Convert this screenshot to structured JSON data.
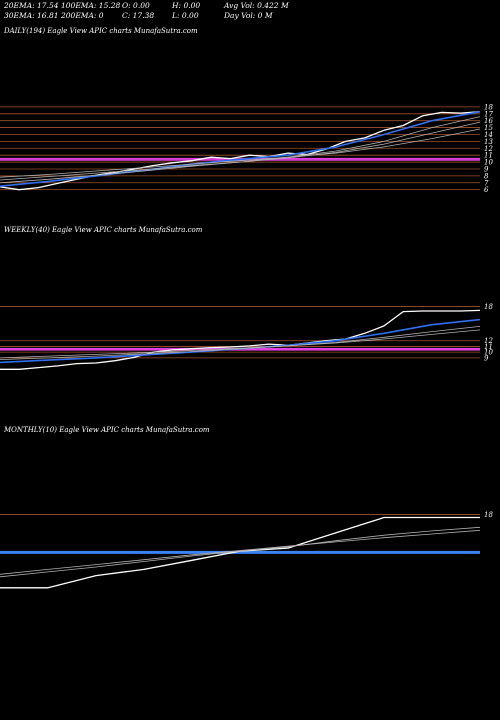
{
  "stats": {
    "row1": [
      "20EMA: 17.54",
      "100EMA: 15.28",
      "O: 0.00",
      "H: 0.00",
      "Avg Vol: 0.422  M"
    ],
    "row2": [
      "30EMA: 16.81",
      "200EMA: 0",
      "C: 17.38",
      "L: 0.00",
      "Day Vol: 0  M"
    ]
  },
  "colors": {
    "background": "#000000",
    "price": "#ffffff",
    "ema_fast": "#2d6ff0",
    "ema_slow": "#b0b0b0",
    "level_line": "#a0522d",
    "support_band": "#e040e0",
    "monthly_band": "#3b82f6"
  },
  "chart_data": [
    {
      "type": "line",
      "title": "DAILY(194) Eagle   View  APIC charts MunafaSutra.com",
      "ylim": [
        4.5,
        19
      ],
      "yticks": [
        18,
        17,
        16,
        15,
        14,
        13,
        12,
        11,
        10,
        9,
        8,
        7,
        6
      ],
      "levels": [
        18,
        17,
        16,
        15,
        14,
        13,
        12,
        11,
        10,
        9,
        8,
        7,
        6
      ],
      "bands": [
        10.3,
        10.5
      ],
      "series": [
        {
          "role": "price",
          "x": [
            0,
            4,
            8,
            12,
            16,
            20,
            24,
            28,
            32,
            36,
            40,
            44,
            48,
            52,
            56,
            60,
            64,
            68,
            72,
            76,
            80,
            84,
            88,
            92,
            96,
            100
          ],
          "values": [
            6.4,
            6.0,
            6.3,
            6.9,
            7.5,
            8.1,
            8.5,
            9.0,
            9.5,
            9.9,
            10.2,
            10.7,
            10.5,
            11.0,
            10.8,
            11.3,
            11.1,
            11.9,
            13.0,
            13.5,
            14.6,
            15.3,
            16.7,
            17.2,
            17.1,
            17.3
          ]
        },
        {
          "role": "ema_fast",
          "x": [
            0,
            10,
            20,
            30,
            40,
            50,
            60,
            70,
            80,
            90,
            100
          ],
          "values": [
            6.5,
            7.2,
            8.0,
            8.8,
            9.7,
            10.4,
            11.0,
            12.2,
            14.0,
            16.0,
            17.3
          ]
        },
        {
          "role": "ema_slow",
          "x": [
            0,
            10,
            20,
            30,
            40,
            50,
            60,
            70,
            80,
            90,
            100
          ],
          "values": [
            7.0,
            7.5,
            8.1,
            8.7,
            9.4,
            10.0,
            10.7,
            11.6,
            13.0,
            15.0,
            16.6
          ]
        },
        {
          "role": "ema_slow",
          "x": [
            0,
            10,
            20,
            30,
            40,
            50,
            60,
            70,
            80,
            90,
            100
          ],
          "values": [
            7.4,
            7.9,
            8.4,
            8.9,
            9.5,
            10.0,
            10.6,
            11.4,
            12.6,
            14.2,
            15.8
          ]
        },
        {
          "role": "ema_slow",
          "x": [
            0,
            10,
            20,
            30,
            40,
            50,
            60,
            70,
            80,
            90,
            100
          ],
          "values": [
            7.8,
            8.2,
            8.7,
            9.2,
            9.7,
            10.2,
            10.7,
            11.3,
            12.2,
            13.4,
            14.8
          ]
        }
      ]
    },
    {
      "type": "line",
      "title": "WEEKLY(40) Eagle   View  APIC charts MunafaSutra.com",
      "ylim": [
        6,
        20
      ],
      "yticks": [
        18,
        12,
        11,
        10,
        9
      ],
      "levels": [
        18,
        12,
        11,
        10,
        9
      ],
      "bands": [
        10.4,
        10.6
      ],
      "series": [
        {
          "role": "price",
          "x": [
            0,
            4,
            8,
            12,
            16,
            20,
            24,
            28,
            32,
            36,
            40,
            44,
            48,
            52,
            56,
            60,
            64,
            68,
            72,
            76,
            80,
            84,
            88,
            92,
            96,
            100
          ],
          "values": [
            7.0,
            7.0,
            7.3,
            7.6,
            8.0,
            8.1,
            8.5,
            9.1,
            10.0,
            10.4,
            10.6,
            10.8,
            10.9,
            11.1,
            11.4,
            11.2,
            11.6,
            12.0,
            12.3,
            13.3,
            14.6,
            17.1,
            17.2,
            17.2,
            17.2,
            17.3
          ]
        },
        {
          "role": "ema_fast",
          "x": [
            0,
            10,
            20,
            30,
            40,
            50,
            60,
            70,
            80,
            90,
            100
          ],
          "values": [
            8.2,
            8.6,
            9.0,
            9.5,
            10.0,
            10.6,
            11.2,
            12.0,
            13.3,
            14.8,
            15.7
          ]
        },
        {
          "role": "ema_slow",
          "x": [
            0,
            10,
            20,
            30,
            40,
            50,
            60,
            70,
            80,
            90,
            100
          ],
          "values": [
            8.7,
            9.0,
            9.3,
            9.7,
            10.1,
            10.6,
            11.1,
            11.7,
            12.6,
            13.6,
            14.5
          ]
        },
        {
          "role": "ema_slow",
          "x": [
            0,
            10,
            20,
            30,
            40,
            50,
            60,
            70,
            80,
            90,
            100
          ],
          "values": [
            9.0,
            9.3,
            9.6,
            9.9,
            10.3,
            10.7,
            11.1,
            11.6,
            12.3,
            13.1,
            13.9
          ]
        }
      ]
    },
    {
      "type": "line",
      "title": "MONTHLY(10) Eagle   View  APIC charts MunafaSutra.com",
      "ylim": [
        4,
        22
      ],
      "yticks": [
        18
      ],
      "levels": [
        18
      ],
      "bands": [
        11.8
      ],
      "series": [
        {
          "role": "price",
          "x": [
            0,
            10,
            20,
            30,
            40,
            50,
            60,
            70,
            80,
            90,
            100
          ],
          "values": [
            6.0,
            6.0,
            8.0,
            9.0,
            10.5,
            12.0,
            12.5,
            15.0,
            17.5,
            17.5,
            17.5
          ]
        },
        {
          "role": "ema_slow",
          "x": [
            0,
            10,
            20,
            30,
            40,
            50,
            60,
            70,
            80,
            90,
            100
          ],
          "values": [
            7.8,
            8.6,
            9.4,
            10.3,
            11.2,
            12.0,
            12.7,
            13.7,
            14.6,
            15.3,
            15.9
          ]
        },
        {
          "role": "ema_slow",
          "x": [
            0,
            10,
            20,
            30,
            40,
            50,
            60,
            70,
            80,
            90,
            100
          ],
          "values": [
            8.2,
            9.0,
            9.8,
            10.6,
            11.4,
            12.1,
            12.8,
            13.5,
            14.2,
            14.8,
            15.4
          ]
        }
      ]
    }
  ]
}
